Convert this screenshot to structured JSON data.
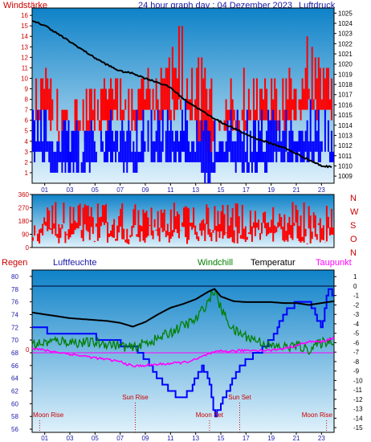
{
  "header": {
    "left_label": "Windstärke",
    "title": "24 hour graph day : 04 Dezember 2023",
    "right_label": "Luftdruck"
  },
  "direction_letters": [
    "N",
    "W",
    "S",
    "O",
    "N"
  ],
  "bottom_header": {
    "regen": "Regen",
    "luftfeuchte": "Luftfeuchte",
    "windchill": "Windchill",
    "temperatur": "Temperatur",
    "taupunkt": "Taupunkt"
  },
  "colors": {
    "wind_gust": "#ff0000",
    "wind_avg": "#0000ff",
    "pressure": "#000000",
    "direction": "#ff0000",
    "humidity": "#0000ff",
    "windchill": "#008000",
    "temperature": "#000000",
    "dewpoint": "#ff00ff",
    "sky_top": "#0e82c8",
    "sky_bottom": "#dff1fb",
    "header_red": "#cc0000",
    "header_blue": "#1818a8",
    "header_green": "#008000",
    "header_magenta": "#ff00ff"
  },
  "chart_data": [
    {
      "type": "bar",
      "name": "wind_and_pressure",
      "x_ticks": [
        "01",
        "03",
        "05",
        "07",
        "09",
        "11",
        "13",
        "15",
        "17",
        "19",
        "21",
        "23"
      ],
      "x_range": [
        0,
        24
      ],
      "y_left_ticks": [
        "1",
        "2",
        "3",
        "4",
        "5",
        "6",
        "7",
        "8",
        "9",
        "10",
        "11",
        "12",
        "13",
        "14",
        "15",
        "16"
      ],
      "y_left_range": [
        0,
        16.7
      ],
      "y_right_ticks": [
        "1009",
        "1010",
        "1011",
        "1012",
        "1013",
        "1014",
        "1015",
        "1016",
        "1017",
        "1018",
        "1019",
        "1020",
        "1021",
        "1022",
        "1023",
        "1024",
        "1025"
      ],
      "y_right_range": [
        1008.3,
        1025.5
      ],
      "series": [
        {
          "name": "gust_max",
          "hours": [
            0,
            1,
            2,
            3,
            4,
            5,
            6,
            7,
            8,
            9,
            10,
            11,
            12,
            13,
            14,
            15,
            16,
            17,
            18,
            19,
            20,
            21,
            22,
            23,
            24
          ],
          "values": [
            10,
            11,
            9,
            10,
            9,
            10,
            10,
            11,
            10,
            12,
            11,
            13,
            16,
            13,
            12,
            11,
            10,
            11,
            10,
            11,
            10,
            12,
            15,
            13,
            11
          ]
        },
        {
          "name": "gust_min",
          "hours": [
            0,
            1,
            2,
            3,
            4,
            5,
            6,
            7,
            8,
            9,
            10,
            11,
            12,
            13,
            14,
            15,
            16,
            17,
            18,
            19,
            20,
            21,
            22,
            23,
            24
          ],
          "values": [
            5,
            6,
            4,
            5,
            4,
            5,
            5,
            6,
            5,
            6,
            6,
            6,
            7,
            5,
            2,
            5,
            5,
            5,
            5,
            5,
            5,
            6,
            7,
            6,
            6
          ]
        },
        {
          "name": "avg_max",
          "hours": [
            0,
            1,
            2,
            3,
            4,
            5,
            6,
            7,
            8,
            9,
            10,
            11,
            12,
            13,
            14,
            15,
            16,
            17,
            18,
            19,
            20,
            21,
            22,
            23,
            24
          ],
          "values": [
            7,
            7,
            5,
            7,
            5,
            7,
            7,
            7,
            7,
            8,
            7,
            8,
            8,
            7,
            6,
            6,
            7,
            7,
            7,
            7,
            7,
            7,
            8,
            8,
            7
          ]
        },
        {
          "name": "avg_min",
          "hours": [
            0,
            1,
            2,
            3,
            4,
            5,
            6,
            7,
            8,
            9,
            10,
            11,
            12,
            13,
            14,
            15,
            16,
            17,
            18,
            19,
            20,
            21,
            22,
            23,
            24
          ],
          "values": [
            3,
            3,
            2,
            2,
            2,
            3,
            3,
            3,
            2,
            3,
            3,
            3,
            3,
            3,
            1,
            3,
            3,
            2,
            2,
            3,
            3,
            3,
            3,
            3,
            3
          ]
        },
        {
          "name": "pressure",
          "hours": [
            0,
            1,
            2,
            3,
            4,
            5,
            6,
            7,
            8,
            9,
            10,
            11,
            12,
            13,
            14,
            15,
            16,
            17,
            18,
            19,
            20,
            21,
            22,
            23,
            23.8
          ],
          "values": [
            1024.2,
            1023.8,
            1023.0,
            1022.2,
            1021.4,
            1020.6,
            1019.9,
            1019.3,
            1019.1,
            1018.6,
            1018.2,
            1017.7,
            1016.6,
            1015.8,
            1015.0,
            1014.3,
            1013.7,
            1013.1,
            1012.6,
            1012.2,
            1011.8,
            1011.2,
            1010.6,
            1010.0,
            1009.9
          ]
        }
      ]
    },
    {
      "type": "bar",
      "name": "wind_direction",
      "x_range": [
        0,
        24
      ],
      "y_ticks": [
        "0",
        "90",
        "180",
        "270",
        "360"
      ],
      "y_range": [
        0,
        360
      ],
      "series": [
        {
          "name": "direction_max",
          "hours": [
            0,
            2,
            4,
            6,
            8,
            10,
            12,
            14,
            16,
            18,
            20,
            22,
            24
          ],
          "values": [
            290,
            310,
            300,
            320,
            300,
            280,
            320,
            310,
            300,
            330,
            310,
            320,
            300
          ]
        },
        {
          "name": "direction_min",
          "hours": [
            0,
            2,
            4,
            6,
            8,
            10,
            12,
            14,
            16,
            18,
            20,
            22,
            24
          ],
          "values": [
            30,
            20,
            40,
            30,
            20,
            40,
            10,
            30,
            20,
            40,
            30,
            20,
            40
          ]
        }
      ]
    },
    {
      "type": "line",
      "name": "temperature_humidity",
      "x_ticks": [
        "01",
        "03",
        "05",
        "07",
        "09",
        "11",
        "13",
        "15",
        "17",
        "19",
        "21",
        "23"
      ],
      "x_range": [
        0,
        24
      ],
      "y_left_ticks": [
        "56",
        "58",
        "60",
        "62",
        "64",
        "66",
        "68",
        "70",
        "72",
        "74",
        "76",
        "78",
        "80"
      ],
      "y_left_range": [
        55.5,
        81
      ],
      "y_right_ticks": [
        "1",
        "0",
        "-1",
        "-2",
        "-3",
        "-4",
        "-5",
        "-6",
        "-7",
        "-8",
        "-9",
        "-10",
        "-11",
        "-12",
        "-13",
        "-14",
        "-15"
      ],
      "y_right_range": [
        -15.5,
        1.7
      ],
      "regen_axis_label": "0",
      "events": [
        {
          "label": "Moon Rise",
          "hour": 0.6
        },
        {
          "label": "Sun Rise",
          "hour": 8.2
        },
        {
          "label": "Moon Set",
          "hour": 14.1
        },
        {
          "label": "Sun Set",
          "hour": 16.5
        },
        {
          "label": "Moon Rise",
          "hour": 23.4
        }
      ],
      "series": [
        {
          "name": "Luftfeuchte",
          "unit": "%",
          "hours": [
            0,
            1,
            1.2,
            2,
            4,
            6,
            8,
            9,
            10,
            11,
            11.5,
            12,
            12.5,
            13,
            13.5,
            14,
            14.5,
            15,
            16,
            17,
            18,
            19,
            20,
            21,
            22,
            23,
            23.5,
            24
          ],
          "values": [
            72,
            72,
            71,
            71,
            71,
            70,
            69,
            67,
            64,
            62,
            61,
            61,
            62,
            64,
            66,
            64,
            58,
            60,
            64,
            67,
            68,
            70,
            74,
            76,
            76,
            72,
            78,
            77
          ]
        },
        {
          "name": "Temperatur",
          "unit": "°C",
          "hours": [
            0,
            1,
            2,
            3,
            4,
            5,
            6,
            7,
            8,
            9,
            10,
            11,
            12,
            13,
            14,
            14.5,
            15,
            16,
            17,
            18,
            19,
            20,
            21,
            22,
            23,
            24
          ],
          "values": [
            -2.8,
            -3.0,
            -3.2,
            -3.4,
            -3.5,
            -3.6,
            -3.7,
            -3.9,
            -4.3,
            -3.8,
            -3.0,
            -2.3,
            -1.9,
            -1.4,
            -0.6,
            -0.3,
            -1.1,
            -1.6,
            -1.7,
            -1.7,
            -1.7,
            -1.8,
            -1.8,
            -2.0,
            -1.8,
            -1.6
          ]
        },
        {
          "name": "Windchill",
          "unit": "°C",
          "hours": [
            0,
            1,
            2,
            3,
            4,
            5,
            6,
            7,
            8,
            9,
            10,
            11,
            12,
            13,
            14,
            14.5,
            15,
            16,
            17,
            18,
            19,
            20,
            21,
            22,
            23,
            24
          ],
          "values": [
            -6.2,
            -6.0,
            -5.8,
            -5.9,
            -6.0,
            -6.0,
            -6.1,
            -6.3,
            -6.6,
            -6.0,
            -5.6,
            -4.9,
            -4.2,
            -3.6,
            -1.6,
            -0.4,
            -2.4,
            -4.7,
            -5.3,
            -5.8,
            -6.4,
            -6.5,
            -6.3,
            -6.7,
            -6.0,
            -5.7
          ]
        },
        {
          "name": "Taupunkt",
          "unit": "°C",
          "hours": [
            0,
            1,
            2,
            3,
            4,
            5,
            6,
            7,
            8,
            9,
            10,
            11,
            12,
            13,
            14,
            15,
            16,
            17,
            18,
            19,
            20,
            21,
            22,
            23,
            24
          ],
          "values": [
            -6.6,
            -6.8,
            -7.0,
            -7.2,
            -7.4,
            -7.6,
            -7.8,
            -8.0,
            -8.5,
            -8.4,
            -8.3,
            -8.2,
            -8.1,
            -7.8,
            -7.2,
            -6.9,
            -6.9,
            -6.8,
            -6.8,
            -6.8,
            -6.6,
            -6.3,
            -5.9,
            -5.9,
            -5.5
          ]
        }
      ]
    }
  ]
}
